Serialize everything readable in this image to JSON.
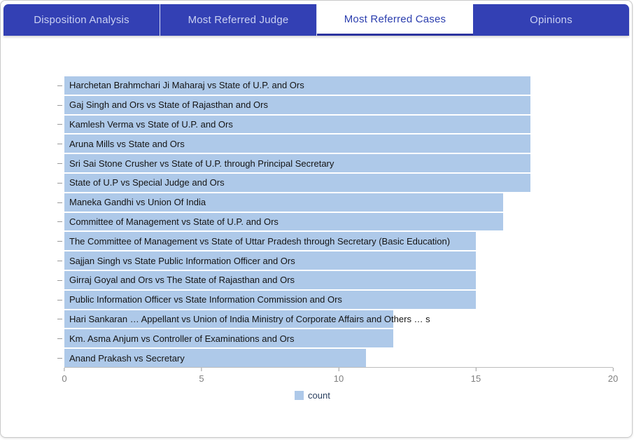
{
  "tabs": [
    {
      "label": "Disposition Analysis",
      "active": false
    },
    {
      "label": "Most Referred Judge",
      "active": false
    },
    {
      "label": "Most Referred Cases",
      "active": true
    },
    {
      "label": "Opinions",
      "active": false
    }
  ],
  "chart_data": {
    "type": "bar",
    "orientation": "horizontal",
    "title": "",
    "xlabel": "",
    "ylabel": "",
    "xlim": [
      0,
      20
    ],
    "x_ticks": [
      0,
      5,
      10,
      15,
      20
    ],
    "grid": false,
    "legend_position": "bottom-center",
    "series_name": "count",
    "categories": [
      "Harchetan Brahmchari Ji Maharaj vs State of U.P. and Ors",
      "Gaj Singh and Ors vs State of Rajasthan and Ors",
      "Kamlesh Verma vs State of U.P. and Ors",
      "Aruna Mills vs State and Ors",
      "Sri Sai Stone Crusher vs State of U.P. through Principal Secretary",
      "State of U.P vs Special Judge and Ors",
      "Maneka Gandhi vs Union Of India",
      "Committee of Management vs State of U.P. and Ors",
      "The Committee of Management vs State of Uttar Pradesh through Secretary (Basic Education)",
      "Sajjan Singh vs State Public Information Officer and Ors",
      "Girraj Goyal and Ors vs The State of Rajasthan and Ors",
      "Public Information Officer vs State Information Commission and Ors",
      "Hari Sankaran … Appellant vs Union of India Ministry of Corporate Affairs and Others … s",
      "Km. Asma Anjum vs Controller of Examinations and Ors",
      "Anand Prakash vs Secretary"
    ],
    "values": [
      17,
      17,
      17,
      17,
      17,
      17,
      16,
      16,
      15,
      15,
      15,
      15,
      12,
      12,
      11
    ]
  },
  "legend": {
    "label": "count"
  },
  "colors": {
    "tabbar_bg": "#3340b4",
    "tab_active_bg": "#ffffff",
    "tab_active_text": "#2b3eae",
    "tab_inactive_text": "#c9d0f2",
    "bar_fill": "#aec9e9",
    "bar_label_text": "#141414",
    "axis_text": "#7f7f7f",
    "legend_text": "#2a3f5f"
  }
}
